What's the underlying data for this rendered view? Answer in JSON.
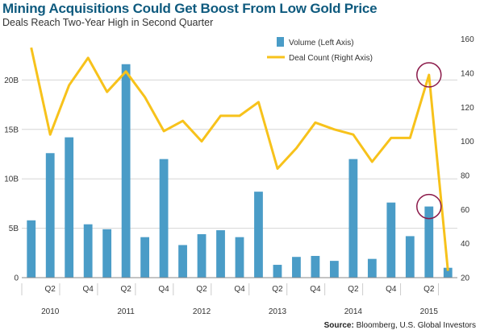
{
  "header": {
    "title": "Mining Acquisitions Could Get Boost From Low Gold Price",
    "subtitle": "Deals Reach Two-Year High in Second Quarter"
  },
  "footer": {
    "source_label": "Source:",
    "source_text": " Bloomberg, U.S. Global Investors"
  },
  "colors": {
    "bar": "#4a9cc7",
    "line": "#f7c21b",
    "highlight_circle": "#8b1a4a",
    "grid": "#d6d6d6",
    "axis_text": "#333333"
  },
  "chart_data": {
    "type": "bar",
    "quarters": [
      "Q1 2010",
      "Q2 2010",
      "Q3 2010",
      "Q4 2010",
      "Q1 2011",
      "Q2 2011",
      "Q3 2011",
      "Q4 2011",
      "Q1 2012",
      "Q2 2012",
      "Q3 2012",
      "Q4 2012",
      "Q1 2013",
      "Q2 2013",
      "Q3 2013",
      "Q4 2013",
      "Q1 2014",
      "Q2 2014",
      "Q3 2014",
      "Q4 2014",
      "Q1 2015",
      "Q2 2015",
      "Q3 2015"
    ],
    "x_tick_labels": [
      "Q2",
      "Q4",
      "Q2",
      "Q4",
      "Q2",
      "Q4",
      "Q2",
      "Q4",
      "Q2",
      "Q4",
      "Q2"
    ],
    "x_tick_quarter_index": [
      1,
      3,
      5,
      7,
      9,
      11,
      13,
      15,
      17,
      19,
      21
    ],
    "year_labels": [
      "2010",
      "2011",
      "2012",
      "2013",
      "2014",
      "2015"
    ],
    "year_label_quarter_index": [
      1,
      5,
      9,
      13,
      17,
      21
    ],
    "series": [
      {
        "name": "Volume (Left Axis)",
        "type": "bar",
        "axis": "left",
        "values": [
          5.8,
          12.6,
          14.2,
          5.4,
          4.9,
          21.6,
          4.1,
          12.0,
          3.3,
          4.4,
          4.8,
          4.1,
          8.7,
          1.3,
          2.1,
          2.2,
          1.7,
          12.0,
          1.9,
          7.6,
          4.2,
          7.2,
          1.0
        ]
      },
      {
        "name": "Deal Count (Right Axis)",
        "type": "line",
        "axis": "right",
        "values": [
          155,
          104,
          133,
          149,
          129,
          141,
          126,
          106,
          112,
          100,
          115,
          115,
          123,
          84,
          96,
          111,
          107,
          104,
          88,
          102,
          102,
          139,
          24
        ]
      }
    ],
    "y_left": {
      "min": 0,
      "max": 25,
      "ticks": [
        0,
        5,
        10,
        15,
        20
      ],
      "tick_labels": [
        "0",
        "5B",
        "10B",
        "15B",
        "20B"
      ]
    },
    "y_right": {
      "min": 20,
      "max": 165,
      "ticks": [
        20,
        40,
        60,
        80,
        100,
        120,
        140,
        160
      ],
      "tick_labels": [
        "20",
        "40",
        "60",
        "80",
        "100",
        "120",
        "140",
        "160"
      ]
    },
    "legend_position": "top-center",
    "grid": "horizontal",
    "highlight_quarter_index": 21,
    "title": "Mining Acquisitions Could Get Boost From Low Gold Price",
    "subtitle": "Deals Reach Two-Year High in Second Quarter"
  }
}
